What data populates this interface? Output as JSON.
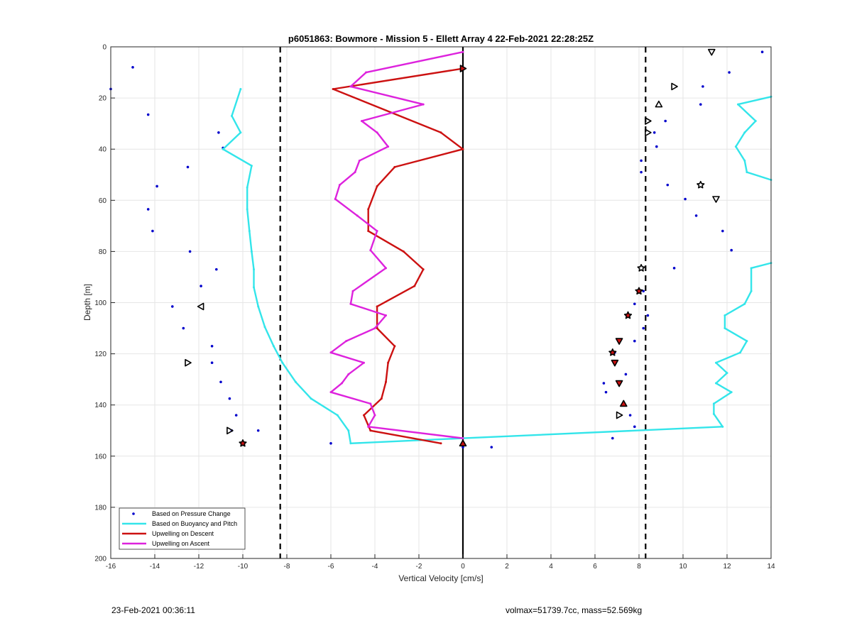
{
  "footer": {
    "timestamp": "23-Feb-2021 00:36:11",
    "info": "volmax=51739.7cc, mass=52.569kg"
  },
  "chart_data": {
    "type": "line",
    "title": "p6051863: Bowmore - Mission 5 - Ellett Array 4 22-Feb-2021 22:28:25Z",
    "xlabel": "Vertical Velocity [cm/s]",
    "ylabel": "Depth [m]",
    "xlim": [
      -16,
      14
    ],
    "ylim": [
      0,
      200
    ],
    "y_reversed": true,
    "grid": true,
    "x_ticks": [
      -16,
      -14,
      -12,
      -10,
      -8,
      -6,
      -4,
      -2,
      0,
      2,
      4,
      6,
      8,
      10,
      12,
      14
    ],
    "y_ticks": [
      0,
      20,
      40,
      60,
      80,
      100,
      120,
      140,
      160,
      180,
      200
    ],
    "legend_position": "bottom-left",
    "legend": [
      {
        "label": "Based on Pressure Change",
        "color": "#0000cc",
        "marker": "dot"
      },
      {
        "label": "Based on Buoyancy and Pitch",
        "color": "#33e5ea",
        "marker": "line"
      },
      {
        "label": "Upwelling on Descent",
        "color": "#cc1111",
        "marker": "line"
      },
      {
        "label": "Upwelling on Ascent",
        "color": "#dd22dd",
        "marker": "line"
      }
    ],
    "vertical_lines": [
      {
        "x": -8.3,
        "style": "dashed",
        "color": "#000000"
      },
      {
        "x": 8.3,
        "style": "dashed",
        "color": "#000000"
      },
      {
        "x": 0,
        "style": "solid",
        "color": "#000000"
      }
    ],
    "series": [
      {
        "name": "Based on Pressure Change",
        "kind": "scatter",
        "color": "#0000cc",
        "points": [
          [
            -15,
            8
          ],
          [
            -16,
            16.5
          ],
          [
            -14.3,
            26.5
          ],
          [
            -11.1,
            33.5
          ],
          [
            -10.9,
            39.5
          ],
          [
            -12.5,
            47
          ],
          [
            -13.9,
            54.5
          ],
          [
            -14.3,
            63.5
          ],
          [
            -14.1,
            72
          ],
          [
            -12.4,
            80
          ],
          [
            -11.2,
            87
          ],
          [
            -11.9,
            93.5
          ],
          [
            -13.2,
            101.5
          ],
          [
            -12.7,
            110
          ],
          [
            -11.4,
            117
          ],
          [
            -11.4,
            123.5
          ],
          [
            -11,
            131
          ],
          [
            -10.6,
            137.5
          ],
          [
            -10.3,
            144
          ],
          [
            -10.5,
            150
          ],
          [
            -9.3,
            150
          ],
          [
            -10,
            155
          ],
          [
            -6,
            155
          ],
          [
            0,
            156.5
          ],
          [
            1.3,
            156.5
          ],
          [
            13.6,
            2
          ],
          [
            12.1,
            10
          ],
          [
            10.9,
            15.5
          ],
          [
            10.8,
            22.5
          ],
          [
            9.2,
            29
          ],
          [
            8.7,
            33.5
          ],
          [
            8.8,
            39
          ],
          [
            8.1,
            44.5
          ],
          [
            8.1,
            49
          ],
          [
            9.3,
            54
          ],
          [
            10.1,
            59.5
          ],
          [
            10.6,
            66
          ],
          [
            11.8,
            72
          ],
          [
            12.2,
            79.5
          ],
          [
            9.6,
            86.5
          ],
          [
            8.2,
            95.5
          ],
          [
            7.8,
            100.5
          ],
          [
            8.4,
            105
          ],
          [
            8.2,
            110
          ],
          [
            7.8,
            115
          ],
          [
            6.9,
            119.5
          ],
          [
            6.9,
            123.5
          ],
          [
            7.4,
            128
          ],
          [
            6.4,
            131.5
          ],
          [
            6.5,
            135
          ],
          [
            7.3,
            139.5
          ],
          [
            7.6,
            144
          ],
          [
            7.8,
            148.5
          ],
          [
            6.8,
            153
          ]
        ]
      },
      {
        "name": "Based on Buoyancy and Pitch (descent)",
        "kind": "line",
        "color": "#33e5ea",
        "points": [
          [
            -10.1,
            16.5
          ],
          [
            -10.5,
            27
          ],
          [
            -10.1,
            33.5
          ],
          [
            -10.9,
            40
          ],
          [
            -9.6,
            46.5
          ],
          [
            -9.8,
            55
          ],
          [
            -9.8,
            63.5
          ],
          [
            -9.7,
            72
          ],
          [
            -9.6,
            80
          ],
          [
            -9.5,
            87
          ],
          [
            -9.5,
            94
          ],
          [
            -9.3,
            101.5
          ],
          [
            -9,
            109.5
          ],
          [
            -8.6,
            117
          ],
          [
            -8.2,
            123.5
          ],
          [
            -7.6,
            131
          ],
          [
            -6.9,
            137.5
          ],
          [
            -5.7,
            144
          ],
          [
            -5.2,
            150
          ],
          [
            -5.1,
            155
          ],
          [
            0,
            153
          ]
        ]
      },
      {
        "name": "Based on Buoyancy and Pitch (ascent)",
        "kind": "line",
        "color": "#33e5ea",
        "points": [
          [
            0,
            153
          ],
          [
            11.8,
            148.5
          ],
          [
            11.4,
            143.5
          ],
          [
            11.4,
            139.5
          ],
          [
            12.2,
            135
          ],
          [
            11.5,
            131.5
          ],
          [
            12,
            127.5
          ],
          [
            11.5,
            123.5
          ],
          [
            12.6,
            119.5
          ],
          [
            12.9,
            115
          ],
          [
            11.9,
            110
          ],
          [
            11.9,
            105
          ],
          [
            12.8,
            100.5
          ],
          [
            13.1,
            95.5
          ],
          [
            13.1,
            86.5
          ],
          [
            14,
            84.5
          ]
        ]
      },
      {
        "name": "Based on Buoyancy and Pitch (ascent upper)",
        "kind": "line",
        "color": "#33e5ea",
        "points": [
          [
            14,
            52
          ],
          [
            12.9,
            49
          ],
          [
            12.8,
            44.5
          ],
          [
            12.4,
            39
          ],
          [
            12.8,
            33.5
          ],
          [
            13.3,
            29
          ],
          [
            12.5,
            22.5
          ],
          [
            14,
            19.5
          ]
        ]
      },
      {
        "name": "Upwelling on Descent",
        "kind": "line",
        "color": "#cc1111",
        "points": [
          [
            0,
            8.5
          ],
          [
            -5.9,
            16.5
          ],
          [
            -1,
            33.5
          ],
          [
            0,
            40
          ],
          [
            -3.1,
            47
          ],
          [
            -3.9,
            54.5
          ],
          [
            -4.3,
            63.5
          ],
          [
            -4.3,
            72
          ],
          [
            -2.7,
            80
          ],
          [
            -1.8,
            87
          ],
          [
            -2.2,
            93.5
          ],
          [
            -3.9,
            101.5
          ],
          [
            -3.9,
            110
          ],
          [
            -3.1,
            117
          ],
          [
            -3.4,
            123.5
          ],
          [
            -3.5,
            131
          ],
          [
            -3.7,
            137.5
          ],
          [
            -4.5,
            144
          ],
          [
            -4.2,
            150
          ],
          [
            -1,
            155
          ]
        ]
      },
      {
        "name": "Upwelling on Ascent",
        "kind": "line",
        "color": "#dd22dd",
        "points": [
          [
            0,
            2
          ],
          [
            -4.4,
            10
          ],
          [
            -5.1,
            15.5
          ],
          [
            -1.8,
            22.5
          ],
          [
            -4.6,
            29
          ],
          [
            -3.9,
            33.5
          ],
          [
            -3.4,
            39
          ],
          [
            -4.7,
            44.5
          ],
          [
            -4.9,
            49
          ],
          [
            -5.6,
            54
          ],
          [
            -5.8,
            59.5
          ],
          [
            -4.8,
            66
          ],
          [
            -3.9,
            72
          ],
          [
            -4.2,
            79.5
          ],
          [
            -3.5,
            86.5
          ],
          [
            -5,
            95.5
          ],
          [
            -5.1,
            100.5
          ],
          [
            -3.5,
            105
          ],
          [
            -4,
            110
          ],
          [
            -5.3,
            115
          ],
          [
            -6,
            119.5
          ],
          [
            -4.5,
            123.5
          ],
          [
            -5.2,
            128
          ],
          [
            -5.5,
            131.5
          ],
          [
            -6,
            135
          ],
          [
            -4.2,
            139.5
          ],
          [
            -4,
            144
          ],
          [
            -4.3,
            148.5
          ],
          [
            0,
            153
          ]
        ]
      }
    ],
    "markers": [
      {
        "type": "triangle-down",
        "x": 11.3,
        "y": 2,
        "fill": "none"
      },
      {
        "type": "triangle-right",
        "x": 0,
        "y": 8.5,
        "fill": "#cc1111"
      },
      {
        "type": "triangle-right",
        "x": 9.6,
        "y": 15.5,
        "fill": "none"
      },
      {
        "type": "triangle-up",
        "x": 8.9,
        "y": 22.5,
        "fill": "none"
      },
      {
        "type": "triangle-right",
        "x": 8.4,
        "y": 29,
        "fill": "none"
      },
      {
        "type": "triangle-right",
        "x": 8.4,
        "y": 33.5,
        "fill": "none"
      },
      {
        "type": "star",
        "x": 10.8,
        "y": 54,
        "fill": "none"
      },
      {
        "type": "triangle-down",
        "x": 11.5,
        "y": 59.5,
        "fill": "none"
      },
      {
        "type": "star",
        "x": 8.1,
        "y": 86.5,
        "fill": "none"
      },
      {
        "type": "star",
        "x": 8,
        "y": 95.5,
        "fill": "#cc1111"
      },
      {
        "type": "triangle-left",
        "x": -11.9,
        "y": 101.5,
        "fill": "none"
      },
      {
        "type": "star",
        "x": 7.5,
        "y": 105,
        "fill": "#cc1111"
      },
      {
        "type": "triangle-down",
        "x": 7.1,
        "y": 115,
        "fill": "#cc1111"
      },
      {
        "type": "star",
        "x": 6.8,
        "y": 119.5,
        "fill": "#cc1111"
      },
      {
        "type": "triangle-down",
        "x": 6.9,
        "y": 123.5,
        "fill": "#cc1111"
      },
      {
        "type": "triangle-right",
        "x": -12.5,
        "y": 123.5,
        "fill": "none"
      },
      {
        "type": "triangle-down",
        "x": 7.1,
        "y": 131.5,
        "fill": "#cc1111"
      },
      {
        "type": "triangle-up",
        "x": 7.3,
        "y": 139.5,
        "fill": "#cc1111"
      },
      {
        "type": "triangle-right",
        "x": 7.1,
        "y": 144,
        "fill": "none"
      },
      {
        "type": "triangle-right",
        "x": -10.6,
        "y": 150,
        "fill": "none"
      },
      {
        "type": "star",
        "x": -10,
        "y": 155,
        "fill": "#cc1111"
      },
      {
        "type": "triangle-up",
        "x": 0,
        "y": 155,
        "fill": "#cc1111"
      }
    ]
  }
}
